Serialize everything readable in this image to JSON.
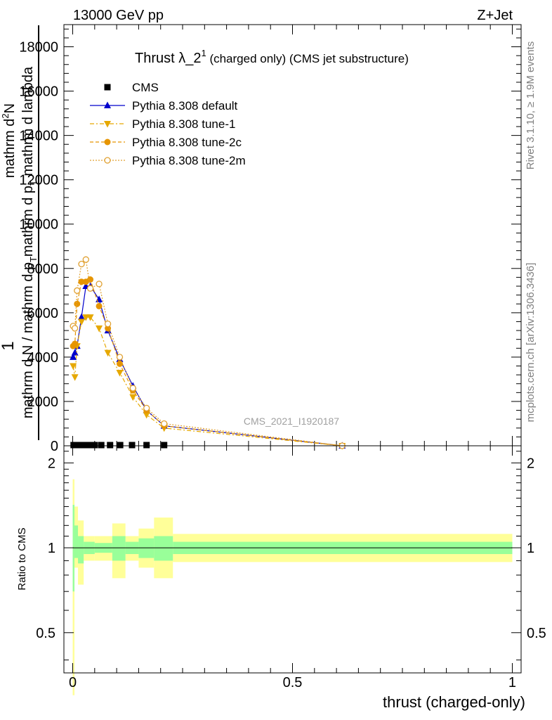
{
  "header": {
    "left": "13000 GeV pp",
    "right": "Z+Jet"
  },
  "side_labels": {
    "rivet": "Rivet 3.1.10, ≥ 1.9M events",
    "mcplots": "mcplots.cern.ch [arXiv:1306.3436]"
  },
  "chart_data": [
    {
      "type": "line",
      "title_main": "Thrust λ_2",
      "title_sup": "1",
      "title_rest": " (charged only) (CMS jet substructure)",
      "watermark": "CMS_2021_I1920187",
      "ylabel_parts": [
        "1",
        "mathrm d N / mathrm d p_T",
        "mathrm d^2N",
        "mathrm d p_T mathrm d lambda"
      ],
      "ylabel_num_a": "mathrm d",
      "ylabel_num_b": "N",
      "ylabel_num_sup": "2",
      "ylabel_den_a": "mathrm d p",
      "ylabel_den_sub": "T",
      "ylabel_den_b": " mathrm d lambda",
      "ylabel_one": "1",
      "ylabel_inner_a": "mathrm d N / mathrm d p",
      "ylabel_inner_sub": "T",
      "xlim": [
        -0.02,
        1.02
      ],
      "ylim": [
        0,
        19000
      ],
      "y_ticks": [
        0,
        2000,
        4000,
        6000,
        8000,
        10000,
        12000,
        14000,
        16000,
        18000
      ],
      "y_tick_labels": [
        "0",
        "2000",
        "4000",
        "6000",
        "8000",
        "10000",
        "12000",
        "14000",
        "16000",
        "18000"
      ],
      "legend": [
        {
          "name": "CMS",
          "color": "#000000",
          "marker": "square",
          "dash": ""
        },
        {
          "name": "Pythia 8.308 default",
          "color": "#0000cc",
          "marker": "triangle-up",
          "dash": ""
        },
        {
          "name": "Pythia 8.308 tune-1",
          "color": "#e6a800",
          "marker": "triangle-down",
          "dash": "6,3,2,3"
        },
        {
          "name": "Pythia 8.308 tune-2c",
          "color": "#e69500",
          "marker": "circle",
          "dash": "5,3"
        },
        {
          "name": "Pythia 8.308 tune-2m",
          "color": "#e0a030",
          "marker": "circle-open",
          "dash": "2,2"
        }
      ],
      "legend_position": "top-left",
      "series": [
        {
          "name": "CMS",
          "x": [
            0.002,
            0.006,
            0.01,
            0.015,
            0.022,
            0.03,
            0.04,
            0.05,
            0.065,
            0.085,
            0.108,
            0.135,
            0.168,
            0.208
          ],
          "y": [
            0,
            0,
            0,
            0,
            0,
            0,
            0,
            0,
            0,
            0,
            0,
            0,
            0,
            0
          ]
        },
        {
          "name": "Pythia 8.308 default",
          "x": [
            0.001,
            0.005,
            0.01,
            0.02,
            0.03,
            0.04,
            0.06,
            0.08,
            0.107,
            0.137,
            0.168,
            0.208,
            0.613
          ],
          "y": [
            4000,
            4200,
            4500,
            5800,
            7200,
            7200,
            6600,
            5200,
            3900,
            2700,
            1600,
            900,
            0
          ]
        },
        {
          "name": "Pythia 8.308 tune-1",
          "x": [
            0.001,
            0.005,
            0.01,
            0.02,
            0.03,
            0.04,
            0.06,
            0.08,
            0.107,
            0.137,
            0.168,
            0.208,
            0.613
          ],
          "y": [
            3600,
            3100,
            4500,
            5600,
            5800,
            5800,
            5300,
            4200,
            3300,
            2200,
            1400,
            800,
            0
          ]
        },
        {
          "name": "Pythia 8.308 tune-2c",
          "x": [
            0.001,
            0.005,
            0.01,
            0.02,
            0.03,
            0.04,
            0.06,
            0.08,
            0.107,
            0.137,
            0.168,
            0.208,
            0.613
          ],
          "y": [
            4500,
            4600,
            6400,
            7400,
            7400,
            7500,
            6300,
            5300,
            3700,
            2500,
            1600,
            900,
            0
          ]
        },
        {
          "name": "Pythia 8.308 tune-2m",
          "x": [
            0.001,
            0.005,
            0.01,
            0.02,
            0.03,
            0.04,
            0.06,
            0.08,
            0.107,
            0.137,
            0.168,
            0.208,
            0.613
          ],
          "y": [
            5400,
            5300,
            7000,
            8200,
            8400,
            7100,
            7300,
            5500,
            4000,
            2600,
            1700,
            1000,
            0
          ]
        }
      ]
    },
    {
      "type": "area",
      "ylabel": "Ratio to CMS",
      "xlabel": "thrust (charged-only)",
      "xlim": [
        -0.02,
        1.02
      ],
      "ylim": [
        0.36,
        2.3
      ],
      "y_ticks": [
        0.5,
        1,
        2
      ],
      "y_tick_labels": [
        "0.5",
        "1",
        "2"
      ],
      "x_ticks": [
        0,
        0.5,
        1
      ],
      "x_tick_labels": [
        "0",
        "0.5",
        "1"
      ],
      "reference_line": 1,
      "bands": [
        {
          "name": "stat+syst",
          "color": "#ffff99",
          "bins": [
            [
              0.0,
              0.004,
              0.3,
              1.75
            ],
            [
              0.004,
              0.012,
              0.85,
              1.4
            ],
            [
              0.012,
              0.025,
              0.74,
              1.25
            ],
            [
              0.025,
              0.05,
              0.9,
              1.1
            ],
            [
              0.05,
              0.09,
              0.9,
              1.1
            ],
            [
              0.09,
              0.12,
              0.78,
              1.22
            ],
            [
              0.12,
              0.15,
              0.9,
              1.1
            ],
            [
              0.15,
              0.185,
              0.85,
              1.17
            ],
            [
              0.185,
              0.228,
              0.78,
              1.28
            ],
            [
              0.228,
              1.0,
              0.89,
              1.12
            ]
          ]
        },
        {
          "name": "stat",
          "color": "#99ff99",
          "bins": [
            [
              0.0,
              0.004,
              0.7,
              1.42
            ],
            [
              0.004,
              0.012,
              0.92,
              1.2
            ],
            [
              0.012,
              0.025,
              0.88,
              1.1
            ],
            [
              0.025,
              0.05,
              0.95,
              1.05
            ],
            [
              0.05,
              0.09,
              0.96,
              1.04
            ],
            [
              0.09,
              0.12,
              0.9,
              1.1
            ],
            [
              0.12,
              0.15,
              0.95,
              1.05
            ],
            [
              0.15,
              0.185,
              0.92,
              1.08
            ],
            [
              0.185,
              0.228,
              0.9,
              1.1
            ],
            [
              0.228,
              1.0,
              0.95,
              1.05
            ]
          ]
        }
      ]
    }
  ]
}
